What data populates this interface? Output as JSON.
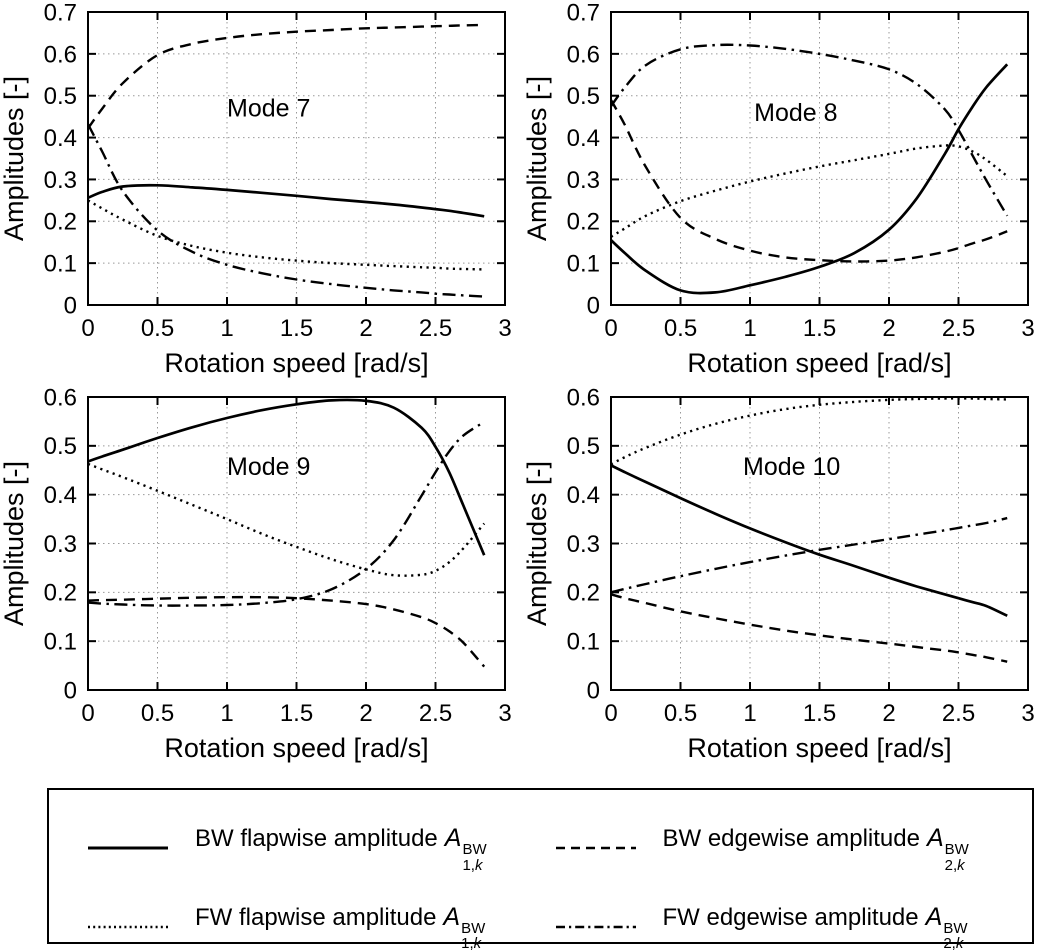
{
  "chart_data": [
    {
      "type": "line",
      "title": "Mode 7",
      "xlabel": "Rotation speed [rad/s]",
      "ylabel": "Amplitudes [-]",
      "xlim": [
        0,
        3
      ],
      "ylim": [
        0,
        0.7
      ],
      "grid": true,
      "xticks": [
        0,
        0.5,
        1,
        1.5,
        2,
        2.5,
        3
      ],
      "xtick_labels": [
        "0",
        "0.5",
        "1",
        "1.5",
        "2",
        "2.5",
        "3"
      ],
      "yticks": [
        0,
        0.1,
        0.2,
        0.3,
        0.4,
        0.5,
        0.6,
        0.7
      ],
      "ytick_labels": [
        "0",
        "0.1",
        "0.2",
        "0.3",
        "0.4",
        "0.5",
        "0.6",
        "0.7"
      ],
      "annotation": {
        "text": "Mode 7",
        "x": 1.3,
        "y": 0.45
      },
      "x": [
        0,
        0.1,
        0.25,
        0.5,
        0.75,
        1,
        1.25,
        1.5,
        1.75,
        2,
        2.2,
        2.4,
        2.5,
        2.6,
        2.7,
        2.85
      ],
      "series": [
        {
          "name": "BW flapwise amplitude A^BW_1,k",
          "style": "solid",
          "y": [
            0.256,
            0.27,
            0.283,
            0.286,
            0.281,
            0.275,
            0.268,
            0.261,
            0.253,
            0.246,
            0.24,
            0.233,
            0.229,
            0.225,
            0.22,
            0.212
          ]
        },
        {
          "name": "BW edgewise amplitude A^BW_2,k",
          "style": "dashed",
          "y": [
            0.422,
            0.468,
            0.53,
            0.597,
            0.624,
            0.638,
            0.647,
            0.653,
            0.657,
            0.661,
            0.663,
            0.665,
            0.666,
            0.667,
            0.668,
            0.669
          ]
        },
        {
          "name": "FW flapwise amplitude A^BW_1,k",
          "style": "dotted",
          "y": [
            0.25,
            0.231,
            0.204,
            0.165,
            0.141,
            0.125,
            0.114,
            0.106,
            0.1,
            0.096,
            0.093,
            0.09,
            0.089,
            0.087,
            0.086,
            0.085
          ]
        },
        {
          "name": "FW edgewise amplitude A^BW_2,k",
          "style": "dashdot",
          "y": [
            0.432,
            0.368,
            0.272,
            0.178,
            0.127,
            0.096,
            0.076,
            0.061,
            0.05,
            0.041,
            0.035,
            0.03,
            0.027,
            0.025,
            0.023,
            0.02
          ]
        }
      ]
    },
    {
      "type": "line",
      "title": "Mode 8",
      "xlabel": "Rotation speed [rad/s]",
      "ylabel": "Amplitudes [-]",
      "xlim": [
        0,
        3
      ],
      "ylim": [
        0,
        0.7
      ],
      "grid": true,
      "xticks": [
        0,
        0.5,
        1,
        1.5,
        2,
        2.5,
        3
      ],
      "xtick_labels": [
        "0",
        "0.5",
        "1",
        "1.5",
        "2",
        "2.5",
        "3"
      ],
      "yticks": [
        0,
        0.1,
        0.2,
        0.3,
        0.4,
        0.5,
        0.6,
        0.7
      ],
      "ytick_labels": [
        "0",
        "0.1",
        "0.2",
        "0.3",
        "0.4",
        "0.5",
        "0.6",
        "0.7"
      ],
      "annotation": {
        "text": "Mode 8",
        "x": 1.33,
        "y": 0.44
      },
      "x": [
        0,
        0.1,
        0.25,
        0.5,
        0.75,
        1,
        1.25,
        1.5,
        1.75,
        2,
        2.2,
        2.4,
        2.5,
        2.6,
        2.7,
        2.85
      ],
      "series": [
        {
          "name": "BW flapwise amplitude A^BW_1,k",
          "style": "solid",
          "y": [
            0.155,
            0.124,
            0.082,
            0.035,
            0.03,
            0.047,
            0.067,
            0.091,
            0.124,
            0.18,
            0.255,
            0.36,
            0.42,
            0.473,
            0.52,
            0.575
          ]
        },
        {
          "name": "BW edgewise amplitude A^BW_2,k",
          "style": "dashed",
          "y": [
            0.49,
            0.43,
            0.33,
            0.208,
            0.158,
            0.13,
            0.114,
            0.107,
            0.104,
            0.106,
            0.114,
            0.127,
            0.136,
            0.147,
            0.157,
            0.176
          ]
        },
        {
          "name": "FW flapwise amplitude A^BW_1,k",
          "style": "dotted",
          "y": [
            0.163,
            0.183,
            0.213,
            0.248,
            0.273,
            0.295,
            0.314,
            0.331,
            0.346,
            0.361,
            0.374,
            0.381,
            0.379,
            0.367,
            0.347,
            0.308
          ]
        },
        {
          "name": "FW edgewise amplitude A^BW_2,k",
          "style": "dashdot",
          "y": [
            0.475,
            0.52,
            0.573,
            0.611,
            0.621,
            0.62,
            0.612,
            0.6,
            0.584,
            0.563,
            0.528,
            0.468,
            0.418,
            0.358,
            0.298,
            0.213
          ]
        }
      ]
    },
    {
      "type": "line",
      "title": "Mode 9",
      "xlabel": "Rotation speed [rad/s]",
      "ylabel": "Amplitudes [-]",
      "xlim": [
        0,
        3
      ],
      "ylim": [
        0,
        0.6
      ],
      "grid": true,
      "xticks": [
        0,
        0.5,
        1,
        1.5,
        2,
        2.5,
        3
      ],
      "xtick_labels": [
        "0",
        "0.5",
        "1",
        "1.5",
        "2",
        "2.5",
        "3"
      ],
      "yticks": [
        0,
        0.1,
        0.2,
        0.3,
        0.4,
        0.5,
        0.6
      ],
      "ytick_labels": [
        "0",
        "0.1",
        "0.2",
        "0.3",
        "0.4",
        "0.5",
        "0.6"
      ],
      "annotation": {
        "text": "Mode 9",
        "x": 1.3,
        "y": 0.44
      },
      "x": [
        0,
        0.1,
        0.25,
        0.5,
        0.75,
        1,
        1.25,
        1.5,
        1.75,
        2,
        2.2,
        2.4,
        2.5,
        2.6,
        2.7,
        2.85
      ],
      "series": [
        {
          "name": "BW flapwise amplitude A^BW_1,k",
          "style": "solid",
          "y": [
            0.468,
            0.478,
            0.492,
            0.516,
            0.538,
            0.557,
            0.573,
            0.585,
            0.593,
            0.592,
            0.578,
            0.537,
            0.498,
            0.445,
            0.378,
            0.276
          ]
        },
        {
          "name": "BW edgewise amplitude A^BW_2,k",
          "style": "dashed",
          "y": [
            0.183,
            0.184,
            0.185,
            0.187,
            0.189,
            0.19,
            0.19,
            0.188,
            0.183,
            0.176,
            0.165,
            0.149,
            0.137,
            0.12,
            0.097,
            0.048
          ]
        },
        {
          "name": "FW flapwise amplitude A^BW_1,k",
          "style": "dotted",
          "y": [
            0.463,
            0.452,
            0.436,
            0.408,
            0.379,
            0.35,
            0.32,
            0.293,
            0.268,
            0.247,
            0.235,
            0.236,
            0.244,
            0.262,
            0.29,
            0.341
          ]
        },
        {
          "name": "FW edgewise amplitude A^BW_2,k",
          "style": "dashdot",
          "y": [
            0.179,
            0.177,
            0.175,
            0.173,
            0.173,
            0.174,
            0.178,
            0.186,
            0.206,
            0.248,
            0.307,
            0.398,
            0.446,
            0.489,
            0.521,
            0.549
          ]
        }
      ]
    },
    {
      "type": "line",
      "title": "Mode 10",
      "xlabel": "Rotation speed [rad/s]",
      "ylabel": "Amplitudes [-]",
      "xlim": [
        0,
        3
      ],
      "ylim": [
        0,
        0.6
      ],
      "grid": true,
      "xticks": [
        0,
        0.5,
        1,
        1.5,
        2,
        2.5,
        3
      ],
      "xtick_labels": [
        "0",
        "0.5",
        "1",
        "1.5",
        "2",
        "2.5",
        "3"
      ],
      "yticks": [
        0,
        0.1,
        0.2,
        0.3,
        0.4,
        0.5,
        0.6
      ],
      "ytick_labels": [
        "0",
        "0.1",
        "0.2",
        "0.3",
        "0.4",
        "0.5",
        "0.6"
      ],
      "annotation": {
        "text": "Mode 10",
        "x": 1.3,
        "y": 0.44
      },
      "x": [
        0,
        0.1,
        0.25,
        0.5,
        0.75,
        1,
        1.25,
        1.5,
        1.75,
        2,
        2.2,
        2.4,
        2.5,
        2.6,
        2.7,
        2.85
      ],
      "series": [
        {
          "name": "BW flapwise amplitude A^BW_1,k",
          "style": "solid",
          "y": [
            0.46,
            0.446,
            0.426,
            0.393,
            0.361,
            0.331,
            0.303,
            0.277,
            0.254,
            0.23,
            0.212,
            0.196,
            0.188,
            0.18,
            0.172,
            0.152
          ]
        },
        {
          "name": "BW edgewise amplitude A^BW_2,k",
          "style": "dashed",
          "y": [
            0.196,
            0.188,
            0.178,
            0.161,
            0.147,
            0.134,
            0.122,
            0.112,
            0.103,
            0.095,
            0.088,
            0.081,
            0.077,
            0.072,
            0.067,
            0.058
          ]
        },
        {
          "name": "FW flapwise amplitude A^BW_1,k",
          "style": "dotted",
          "y": [
            0.462,
            0.477,
            0.496,
            0.523,
            0.545,
            0.562,
            0.575,
            0.584,
            0.59,
            0.594,
            0.596,
            0.597,
            0.597,
            0.597,
            0.596,
            0.595
          ]
        },
        {
          "name": "FW edgewise amplitude A^BW_2,k",
          "style": "dashdot",
          "y": [
            0.2,
            0.207,
            0.217,
            0.233,
            0.248,
            0.262,
            0.275,
            0.287,
            0.298,
            0.309,
            0.318,
            0.327,
            0.332,
            0.337,
            0.342,
            0.352
          ]
        }
      ]
    }
  ],
  "legend": {
    "items": [
      {
        "style": "solid",
        "prefix": "BW flapwise amplitude",
        "var_base": "A",
        "var_sup": "BW",
        "var_sub": "1,k"
      },
      {
        "style": "dashed",
        "prefix": "BW edgewise amplitude",
        "var_base": "A",
        "var_sup": "BW",
        "var_sub": "2,k"
      },
      {
        "style": "dotted",
        "prefix": "FW flapwise amplitude",
        "var_base": "A",
        "var_sup": "BW",
        "var_sub": "1,k"
      },
      {
        "style": "dashdot",
        "prefix": "FW edgewise amplitude",
        "var_base": "A",
        "var_sup": "BW",
        "var_sub": "2,k"
      }
    ]
  }
}
